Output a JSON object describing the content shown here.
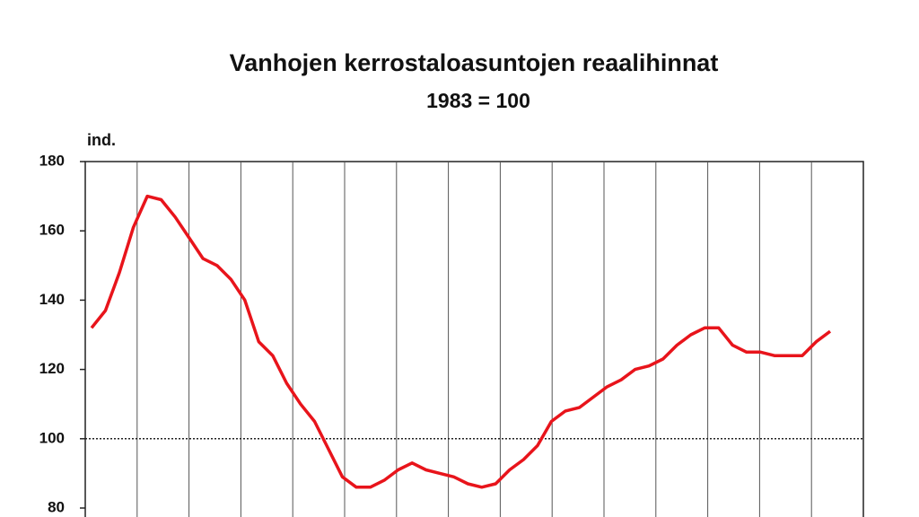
{
  "chart_data": {
    "type": "line",
    "title": "Vanhojen kerrostaloasuntojen reaalihinnat",
    "subtitle": "1983 = 100",
    "y_label": "ind.",
    "series": [
      {
        "name": null,
        "color": "#e8141b",
        "values": [
          132,
          137,
          148,
          161,
          170,
          169,
          164,
          158,
          152,
          150,
          146,
          140,
          128,
          124,
          116,
          110,
          105,
          97,
          89,
          86,
          86,
          88,
          91,
          93,
          91,
          90,
          89,
          87,
          86,
          87,
          91,
          94,
          98,
          105,
          108,
          109,
          112,
          115,
          117,
          120,
          121,
          123,
          127,
          130,
          132,
          132,
          127,
          125,
          125,
          124,
          124,
          124,
          128,
          131
        ]
      }
    ],
    "ylim": [
      80,
      180
    ],
    "yticks": [
      80,
      100,
      120,
      140,
      160,
      180
    ],
    "reference_line": 100
  }
}
